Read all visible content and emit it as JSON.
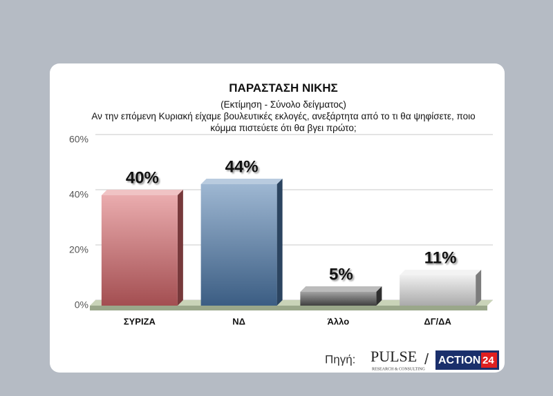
{
  "chart_data": {
    "type": "bar3d",
    "title": "ΠΑΡΑΣΤΑΣΗ ΝΙΚΗΣ",
    "subtitle": "(Εκτίμηση - Σύνολο δείγματος)",
    "question": "Αν την επόμενη Κυριακή είχαμε βουλευτικές εκλογές, ανεξάρτητα από το τι θα ψηφίσετε, ποιο κόμμα πιστεύετε ότι θα βγει πρώτο;",
    "categories": [
      "ΣΥΡΙΖΑ",
      "ΝΔ",
      "Άλλο",
      "ΔΓ/ΔΑ"
    ],
    "values": [
      40,
      44,
      5,
      11
    ],
    "value_labels": [
      "40%",
      "44%",
      "5%",
      "11%"
    ],
    "colors": [
      "#d9686c",
      "#4f7cae",
      "#555555",
      "#e2e2e2"
    ],
    "ylim": [
      0,
      60
    ],
    "yticks": [
      {
        "value": 0,
        "label": "0%"
      },
      {
        "value": 20,
        "label": "20%"
      },
      {
        "value": 40,
        "label": "40%"
      },
      {
        "value": 60,
        "label": "60%"
      }
    ],
    "grid": true
  },
  "footer": {
    "source_label": "Πηγή:",
    "logo1": "PULSE",
    "logo1_sub": "RESEARCH & CONSULTING",
    "separator": "/",
    "logo2": "ACTION",
    "logo2_num": "24"
  }
}
